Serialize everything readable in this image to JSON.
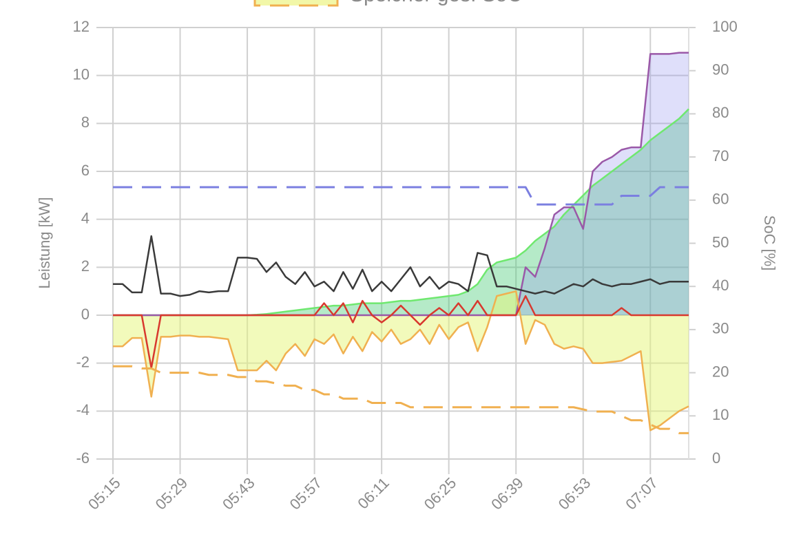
{
  "chart_data": {
    "type": "line",
    "x": [
      "05:15",
      "05:17",
      "05:19",
      "05:21",
      "05:23",
      "05:25",
      "05:27",
      "05:29",
      "05:31",
      "05:33",
      "05:35",
      "05:37",
      "05:39",
      "05:41",
      "05:43",
      "05:45",
      "05:47",
      "05:49",
      "05:51",
      "05:53",
      "05:55",
      "05:57",
      "05:59",
      "06:01",
      "06:03",
      "06:05",
      "06:07",
      "06:09",
      "06:11",
      "06:13",
      "06:15",
      "06:17",
      "06:19",
      "06:21",
      "06:23",
      "06:25",
      "06:27",
      "06:29",
      "06:31",
      "06:33",
      "06:35",
      "06:37",
      "06:39",
      "06:41",
      "06:43",
      "06:45",
      "06:47",
      "06:49",
      "06:51",
      "06:53",
      "06:55",
      "06:57",
      "06:59",
      "07:01",
      "07:03",
      "07:05",
      "07:07",
      "07:09",
      "07:11",
      "07:13",
      "07:15"
    ],
    "xlim": [
      "05:15",
      "07:15"
    ],
    "xticks": [
      "05:15",
      "05:29",
      "05:43",
      "05:57",
      "06:11",
      "06:25",
      "06:39",
      "06:53",
      "07:07"
    ],
    "ylim": [
      -6,
      12
    ],
    "yticks": [
      -6,
      -4,
      -2,
      0,
      2,
      4,
      6,
      8,
      10,
      12
    ],
    "y2lim": [
      0,
      100
    ],
    "y2ticks": [
      0,
      10,
      20,
      30,
      40,
      50,
      60,
      70,
      80,
      90,
      100
    ],
    "ylabel": "Leistung [kW]",
    "y2label": "SoC [%]",
    "grid": true,
    "series": [
      {
        "color": "#6fe86f",
        "fill": "rgba(60,200,110,0.38)",
        "values": [
          0,
          0,
          0,
          0,
          0,
          0,
          0,
          0,
          0,
          0,
          0,
          0,
          0,
          0,
          0,
          0.02,
          0.05,
          0.1,
          0.15,
          0.2,
          0.25,
          0.3,
          0.35,
          0.4,
          0.4,
          0.45,
          0.5,
          0.5,
          0.5,
          0.55,
          0.6,
          0.6,
          0.65,
          0.7,
          0.75,
          0.8,
          0.85,
          1.0,
          1.3,
          1.9,
          2.2,
          2.3,
          2.4,
          2.7,
          3.1,
          3.4,
          3.7,
          4.2,
          4.6,
          5.0,
          5.4,
          5.7,
          6.0,
          6.3,
          6.6,
          6.9,
          7.3,
          7.6,
          7.9,
          8.2,
          8.6
        ]
      },
      {
        "color": "#9a58a8",
        "fill": "rgba(150,150,240,0.3)",
        "values": [
          0,
          0,
          0,
          0,
          0,
          0,
          0,
          0,
          0,
          0,
          0,
          0,
          0,
          0,
          0,
          0,
          0,
          0,
          0,
          0,
          0,
          0,
          0,
          0,
          0,
          0,
          0,
          0,
          0,
          0,
          0,
          0,
          0,
          0,
          0,
          0,
          0,
          0,
          0,
          0,
          0,
          0,
          0,
          2.0,
          1.6,
          2.8,
          4.2,
          4.5,
          4.5,
          3.6,
          6.0,
          6.4,
          6.6,
          6.9,
          7.0,
          7.0,
          10.9,
          10.9,
          10.9,
          10.95,
          10.95
        ]
      },
      {
        "color": "#f0b050",
        "fill": "rgba(230,245,120,0.5)",
        "values": [
          -1.3,
          -1.3,
          -0.95,
          -0.95,
          -3.4,
          -0.9,
          -0.9,
          -0.85,
          -0.85,
          -0.9,
          -0.9,
          -0.95,
          -1.0,
          -2.3,
          -2.3,
          -2.3,
          -1.9,
          -2.3,
          -1.6,
          -1.2,
          -1.7,
          -1.0,
          -1.2,
          -0.8,
          -1.6,
          -0.9,
          -1.5,
          -0.7,
          -1.1,
          -0.6,
          -1.2,
          -1.0,
          -0.6,
          -1.2,
          -0.4,
          -1.0,
          -0.5,
          -0.3,
          -1.5,
          -0.5,
          0.8,
          0.9,
          1.0,
          -1.2,
          -0.2,
          -0.4,
          -1.2,
          -1.4,
          -1.3,
          -1.4,
          -2.0,
          -2.0,
          -1.95,
          -1.9,
          -1.7,
          -1.5,
          -4.8,
          -4.6,
          -4.3,
          -4.0,
          -3.8
        ]
      },
      {
        "color": "#3a3a3a",
        "values": [
          1.3,
          1.3,
          0.95,
          0.95,
          3.3,
          0.9,
          0.9,
          0.8,
          0.85,
          1.0,
          0.95,
          1.0,
          1.0,
          2.4,
          2.4,
          2.35,
          1.8,
          2.2,
          1.6,
          1.3,
          1.8,
          1.2,
          1.4,
          1.0,
          1.8,
          1.1,
          1.9,
          1.0,
          1.4,
          1.0,
          1.5,
          2.0,
          1.2,
          1.6,
          1.1,
          1.4,
          1.3,
          1.0,
          2.6,
          2.5,
          1.2,
          1.2,
          1.1,
          1.0,
          0.9,
          1.0,
          0.9,
          1.1,
          1.3,
          1.2,
          1.5,
          1.3,
          1.2,
          1.3,
          1.3,
          1.4,
          1.5,
          1.3,
          1.4,
          1.4,
          1.4
        ]
      },
      {
        "color": "#d8382e",
        "values": [
          0,
          0,
          0,
          0,
          -2.2,
          0,
          0,
          0,
          0,
          0,
          0,
          0,
          0,
          0,
          0,
          0,
          0,
          0,
          0,
          0,
          0,
          0,
          0.5,
          0,
          0.5,
          -0.3,
          0.6,
          0,
          -0.3,
          0,
          0.4,
          0,
          -0.4,
          0,
          0.3,
          0,
          0.5,
          0,
          0.6,
          0,
          0,
          0,
          0,
          0.8,
          0,
          0,
          0,
          0,
          0,
          0,
          0,
          0,
          0,
          0.3,
          0,
          0,
          0,
          0,
          0,
          0,
          0
        ]
      },
      {
        "color": "#7b7fe0",
        "dash": true,
        "axis": "y2",
        "values": [
          63,
          63,
          63,
          63,
          63,
          63,
          63,
          63,
          63,
          63,
          63,
          63,
          63,
          63,
          63,
          63,
          63,
          63,
          63,
          63,
          63,
          63,
          63,
          63,
          63,
          63,
          63,
          63,
          63,
          63,
          63,
          63,
          63,
          63,
          63,
          63,
          63,
          63,
          63,
          63,
          63,
          63,
          63,
          63,
          59,
          59,
          59,
          59,
          59,
          59,
          59,
          59,
          59,
          61,
          61,
          61,
          61,
          63,
          63,
          63,
          63
        ]
      },
      {
        "name": "Speicher ges. SoC",
        "color": "#f0b050",
        "dash": true,
        "axis": "y2",
        "legend_fill": "#f2f7a8",
        "values": [
          21.5,
          21.5,
          21.5,
          21,
          21,
          20,
          20,
          20,
          20,
          20,
          19.5,
          19.5,
          19.5,
          19,
          19,
          18,
          18,
          17.5,
          17,
          17,
          16,
          16,
          15,
          15,
          14,
          14,
          14,
          13,
          13,
          13,
          13,
          12,
          12,
          12,
          12,
          12,
          12,
          12,
          12,
          12,
          12,
          12,
          12,
          12,
          12,
          12,
          12,
          12,
          12,
          11.5,
          11,
          11,
          11,
          10,
          9,
          9,
          8,
          7,
          7,
          6,
          6
        ]
      }
    ]
  }
}
